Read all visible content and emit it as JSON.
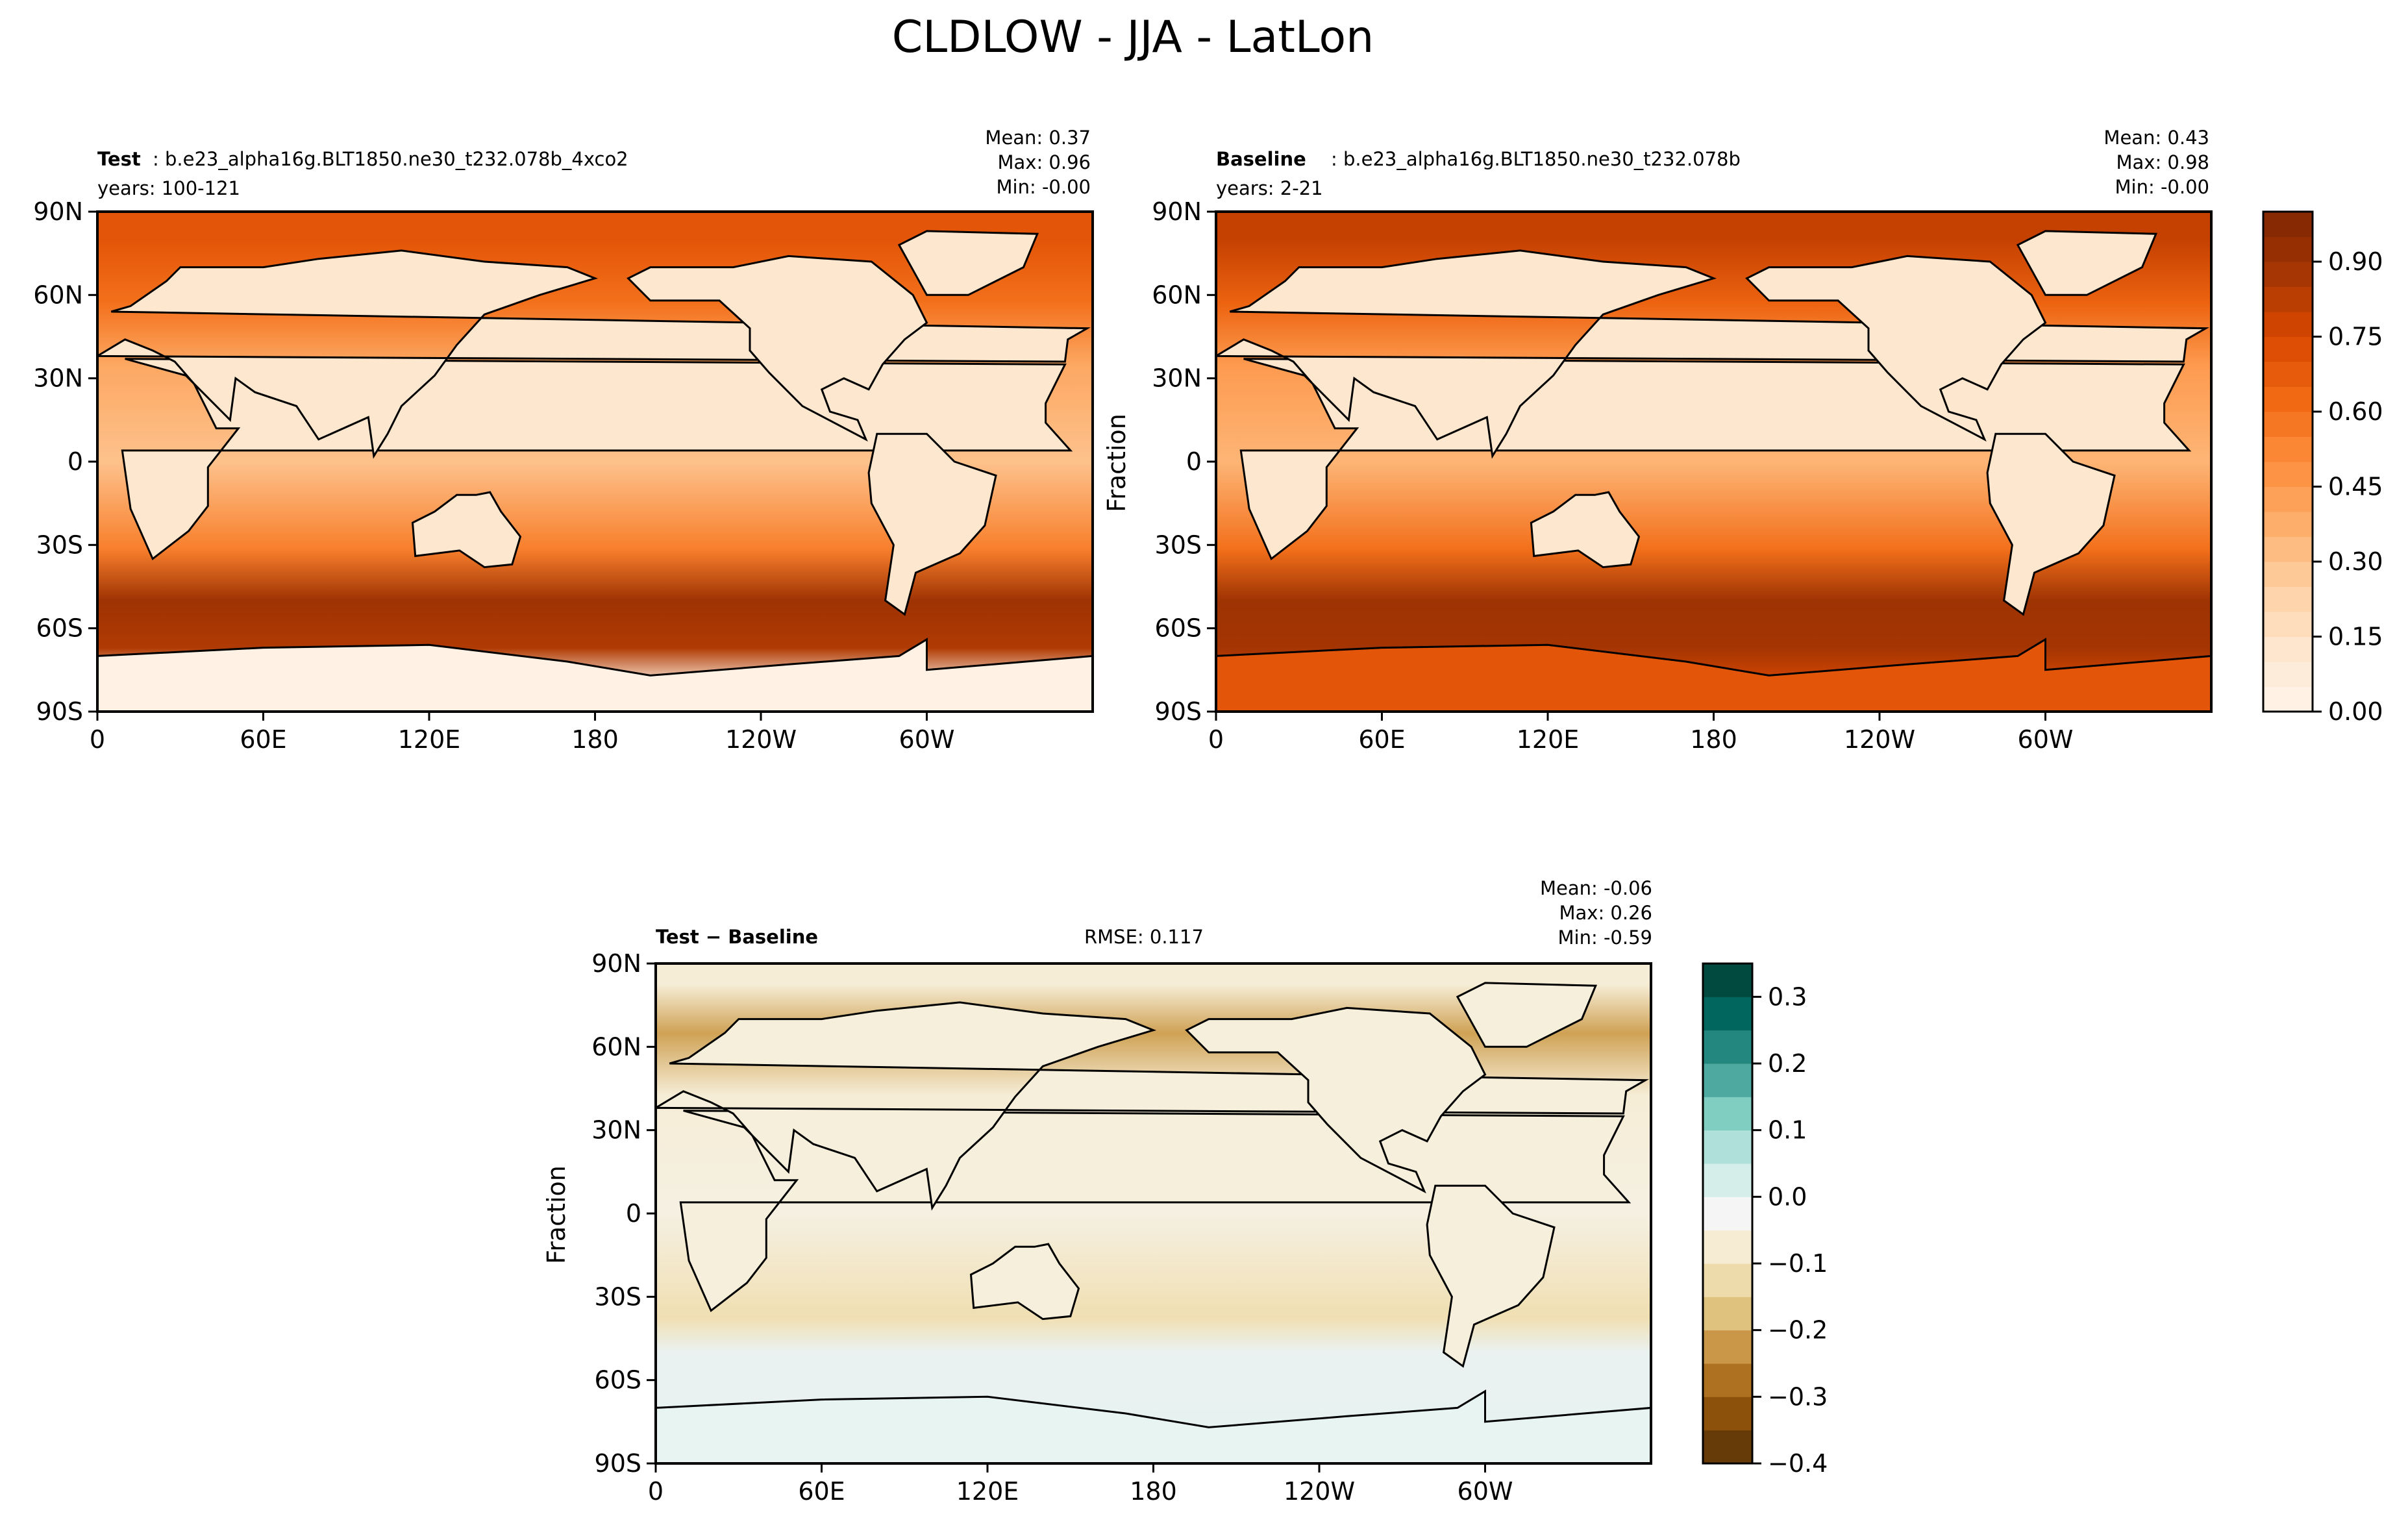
{
  "figure": {
    "title": "CLDLOW - JJA - LatLon"
  },
  "chart_data": [
    {
      "type": "heatmap",
      "panel": "test",
      "label_bold": "Test",
      "case_name": ": b.e23_alpha16g.BLT1850.ne30_t232.078b_4xco2",
      "years": "years: 100-121",
      "stats": [
        "Mean:  0.37",
        "Max:  0.96",
        "Min: -0.00"
      ],
      "ylabel": "",
      "xticks": [
        "0",
        "60E",
        "120E",
        "180",
        "120W",
        "60W"
      ],
      "yticks": [
        "90N",
        "60N",
        "30N",
        "0",
        "30S",
        "60S",
        "90S"
      ],
      "xlim": [
        0,
        360
      ],
      "ylim": [
        -90,
        90
      ],
      "colormap": "Oranges",
      "zones": [
        {
          "lat": [
            -90,
            -72
          ],
          "value": 0.02
        },
        {
          "lat": [
            -72,
            -62
          ],
          "value": 0.85
        },
        {
          "lat": [
            -62,
            -38
          ],
          "value": 0.9
        },
        {
          "lat": [
            -38,
            -25
          ],
          "value": 0.55
        },
        {
          "lat": [
            -25,
            25
          ],
          "value": 0.3
        },
        {
          "lat": [
            25,
            45
          ],
          "value": 0.4
        },
        {
          "lat": [
            45,
            70
          ],
          "value": 0.6
        },
        {
          "lat": [
            70,
            90
          ],
          "value": 0.7
        }
      ]
    },
    {
      "type": "heatmap",
      "panel": "baseline",
      "label_bold": "Baseline",
      "case_name": ": b.e23_alpha16g.BLT1850.ne30_t232.078b",
      "years": "years: 2-21",
      "stats": [
        "Mean:  0.43",
        "Max:  0.98",
        "Min: -0.00"
      ],
      "ylabel": "Fraction",
      "xticks": [
        "0",
        "60E",
        "120E",
        "180",
        "120W",
        "60W"
      ],
      "yticks": [
        "90N",
        "60N",
        "30N",
        "0",
        "30S",
        "60S",
        "90S"
      ],
      "xlim": [
        0,
        360
      ],
      "ylim": [
        -90,
        90
      ],
      "colormap": "Oranges",
      "colorbar_ticks": [
        "0.00",
        "0.15",
        "0.30",
        "0.45",
        "0.60",
        "0.75",
        "0.90"
      ],
      "colorbar_range": [
        0,
        1.0
      ],
      "zones": [
        {
          "lat": [
            -90,
            -72
          ],
          "value": 0.75
        },
        {
          "lat": [
            -72,
            -62
          ],
          "value": 0.88
        },
        {
          "lat": [
            -62,
            -38
          ],
          "value": 0.9
        },
        {
          "lat": [
            -38,
            -25
          ],
          "value": 0.6
        },
        {
          "lat": [
            -25,
            25
          ],
          "value": 0.35
        },
        {
          "lat": [
            25,
            45
          ],
          "value": 0.45
        },
        {
          "lat": [
            45,
            70
          ],
          "value": 0.65
        },
        {
          "lat": [
            70,
            90
          ],
          "value": 0.8
        }
      ]
    },
    {
      "type": "heatmap",
      "panel": "difference",
      "label_bold": "Test − Baseline",
      "rmse": "RMSE: 0.117",
      "stats": [
        "Mean: -0.06",
        "Max:  0.26",
        "Min: -0.59"
      ],
      "ylabel": "Fraction",
      "xticks": [
        "0",
        "60E",
        "120E",
        "180",
        "120W",
        "60W"
      ],
      "yticks": [
        "90N",
        "60N",
        "30N",
        "0",
        "30S",
        "60S",
        "90S"
      ],
      "xlim": [
        0,
        360
      ],
      "ylim": [
        -90,
        90
      ],
      "colormap": "BrBG",
      "colorbar_ticks": [
        "0.3",
        "0.2",
        "0.1",
        "0.0",
        "−0.1",
        "−0.2",
        "−0.3",
        "−0.4"
      ],
      "colorbar_range": [
        -0.4,
        0.35
      ],
      "zones": [
        {
          "lat": [
            -90,
            -72
          ],
          "value": 0.03
        },
        {
          "lat": [
            -72,
            -55
          ],
          "value": 0.02
        },
        {
          "lat": [
            -55,
            -45
          ],
          "value": 0.02
        },
        {
          "lat": [
            -45,
            -30
          ],
          "value": -0.1
        },
        {
          "lat": [
            -30,
            30
          ],
          "value": -0.03
        },
        {
          "lat": [
            30,
            55
          ],
          "value": -0.05
        },
        {
          "lat": [
            55,
            75
          ],
          "value": -0.2
        },
        {
          "lat": [
            75,
            90
          ],
          "value": -0.05
        }
      ]
    }
  ],
  "colors": {
    "oranges": [
      "#fff5eb",
      "#fee6ce",
      "#fdd0a2",
      "#fdae6b",
      "#fd8d3c",
      "#f16913",
      "#d94801",
      "#a63603",
      "#7f2704"
    ],
    "brbg": [
      "#543005",
      "#8c510a",
      "#bf812d",
      "#dfc27d",
      "#f6e8c3",
      "#f5f5f5",
      "#c7eae5",
      "#80cdc1",
      "#35978f",
      "#01665e",
      "#003c30"
    ],
    "coastline": "#000000"
  }
}
